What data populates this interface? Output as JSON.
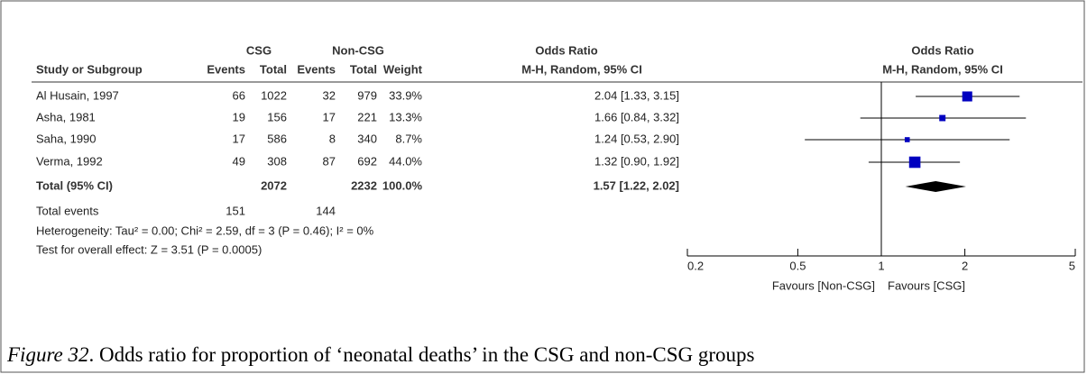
{
  "chart_data": {
    "type": "forest",
    "column_groups": [
      "CSG",
      "Non-CSG",
      "Odds Ratio"
    ],
    "columns": [
      "Study or Subgroup",
      "Events",
      "Total",
      "Events",
      "Total",
      "Weight",
      "M-H, Random, 95% CI"
    ],
    "plot_title": "Odds Ratio",
    "plot_subtitle": "M-H, Random, 95% CI",
    "studies": [
      "Al Husain, 1997",
      "Asha, 1981",
      "Saha, 1990",
      "Verma, 1992"
    ],
    "csg_events": [
      66,
      19,
      17,
      49
    ],
    "csg_total": [
      1022,
      156,
      586,
      308
    ],
    "non_events": [
      32,
      17,
      8,
      87
    ],
    "non_total": [
      979,
      221,
      340,
      692
    ],
    "weights": [
      33.9,
      13.3,
      8.7,
      44.0
    ],
    "weight_labels": [
      "33.9%",
      "13.3%",
      "8.7%",
      "44.0%"
    ],
    "or": [
      2.04,
      1.66,
      1.24,
      1.32
    ],
    "lower": [
      1.33,
      0.84,
      0.53,
      0.9
    ],
    "upper": [
      3.15,
      3.32,
      2.9,
      1.92
    ],
    "or_labels": [
      "2.04 [1.33, 3.15]",
      "1.66 [0.84, 3.32]",
      "1.24 [0.53, 2.90]",
      "1.32 [0.90, 1.92]"
    ],
    "total": {
      "label": "Total (95% CI)",
      "csg_total": 2072,
      "non_total": 2232,
      "weight": 100.0,
      "weight_label": "100.0%",
      "or": 1.57,
      "lower": 1.22,
      "upper": 2.02,
      "or_label": "1.57 [1.22, 2.02]"
    },
    "total_events": {
      "label": "Total events",
      "csg": 151,
      "non": 144
    },
    "heterogeneity": "Heterogeneity: Tau² = 0.00; Chi² = 2.59, df = 3 (P = 0.46); I² = 0%",
    "overall_effect": "Test for overall effect: Z = 3.51 (P = 0.0005)",
    "xscale": "log",
    "xlim": [
      0.2,
      5
    ],
    "xticks": [
      0.2,
      0.5,
      1,
      2,
      5
    ],
    "reference": 1,
    "favours": [
      "Favours [Non-CSG]",
      "Favours [CSG]"
    ],
    "marker_color": "#0000c0",
    "summary_color": "#000000",
    "caption_label": "Figure 32",
    "caption_text": ". Odds ratio for proportion of ‘neonatal deaths’ in the CSG and non-CSG groups"
  }
}
